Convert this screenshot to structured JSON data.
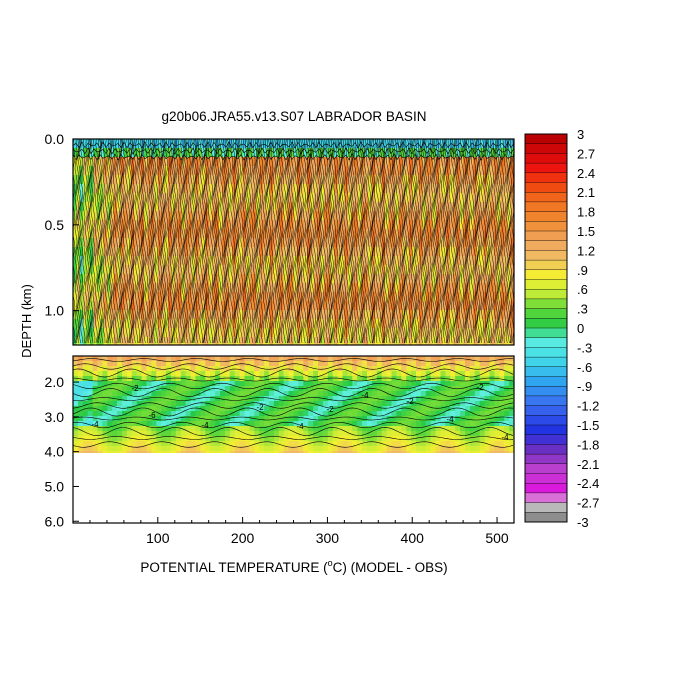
{
  "chart_data": {
    "type": "heatmap",
    "title": "g20b06.JRA55.v13.S07 LABRADOR BASIN",
    "xlabel_main": "POTENTIAL TEMPERATURE (",
    "xlabel_deg": "o",
    "xlabel_tail": "C) (MODEL - OBS)",
    "ylabel": "DEPTH (km)",
    "x_range": [
      0,
      520
    ],
    "x_ticks": [
      {
        "label": "100",
        "v": 100
      },
      {
        "label": "200",
        "v": 200
      },
      {
        "label": "300",
        "v": 300
      },
      {
        "label": "400",
        "v": 400
      },
      {
        "label": "500",
        "v": 500
      }
    ],
    "upper_panel": {
      "depth_range": [
        0.0,
        1.2
      ],
      "y_ticks": [
        {
          "label": "0.0",
          "v": 0.0
        },
        {
          "label": "0.5",
          "v": 0.5
        },
        {
          "label": "1.0",
          "v": 1.0
        }
      ]
    },
    "lower_panel": {
      "depth_range": [
        1.2,
        6.0
      ],
      "data_bottom": 3.9,
      "y_ticks": [
        {
          "label": "2.0",
          "v": 1.95
        },
        {
          "label": "3.0",
          "v": 2.95
        },
        {
          "label": "4.0",
          "v": 3.95
        },
        {
          "label": "5.0",
          "v": 4.95
        },
        {
          "label": "6.0",
          "v": 5.95
        }
      ]
    },
    "colorbar": {
      "range": [
        -3,
        3
      ],
      "labels": [
        "3",
        "2.7",
        "2.4",
        "2.1",
        "1.8",
        "1.5",
        "1.2",
        ".9",
        ".6",
        ".3",
        "0",
        "-.3",
        "-.6",
        "-.9",
        "-1.2",
        "-1.5",
        "-1.8",
        "-2.1",
        "-2.4",
        "-2.7",
        "-3"
      ]
    },
    "contour_labels": [
      "-2",
      "-4",
      "-4",
      "-2",
      "-4",
      "-2",
      "-6",
      "-4",
      "-2",
      "-4",
      "-2",
      "-4"
    ]
  }
}
